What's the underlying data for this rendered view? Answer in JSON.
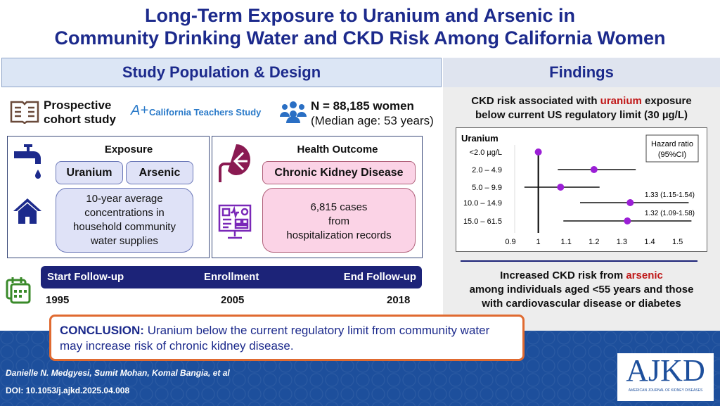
{
  "title": {
    "line1": "Long-Term Exposure to Uranium and Arsenic in",
    "line2": "Community Drinking Water and CKD Risk Among California Women"
  },
  "left": {
    "header": "Study Population & Design",
    "design": {
      "line1": "Prospective",
      "line2": "cohort study"
    },
    "study_name": "California Teachers Study",
    "population": {
      "n": "N = 88,185 women",
      "age": "(Median age: 53 years)"
    },
    "exposure": {
      "title": "Exposure",
      "chips": [
        "Uranium",
        "Arsenic"
      ],
      "description": [
        "10-year average",
        "concentrations in",
        "household community",
        "water supplies"
      ]
    },
    "outcome": {
      "title": "Health Outcome",
      "chip": "Chronic Kidney Disease",
      "description": [
        "6,815 cases",
        "from",
        "hospitalization records"
      ]
    },
    "timeline": {
      "labels": [
        "Start Follow-up",
        "Enrollment",
        "End Follow-up"
      ],
      "years": [
        "1995",
        "2005",
        "2018"
      ]
    }
  },
  "right": {
    "header": "Findings",
    "uranium_finding": {
      "pre": "CKD risk associated with ",
      "highlight": "uranium",
      "post": " exposure",
      "line2": "below current US regulatory limit (30 µg/L)"
    },
    "arsenic_finding": {
      "pre": "Increased CKD risk from ",
      "highlight": "arsenic",
      "line2": "among individuals aged <55 years and those",
      "line3": "with cardiovascular disease or diabetes"
    }
  },
  "chart_data": {
    "type": "forest",
    "row_title": "Uranium",
    "legend": {
      "line1": "Hazard ratio",
      "line2": "(95%CI)"
    },
    "categories": [
      "<2.0 µg/L",
      "2.0 – 4.9",
      "5.0 – 9.9",
      "10.0 – 14.9",
      "15.0 – 61.5"
    ],
    "hr": [
      1.0,
      1.2,
      1.08,
      1.33,
      1.32
    ],
    "lower": [
      null,
      1.07,
      0.95,
      1.15,
      1.09
    ],
    "upper": [
      null,
      1.35,
      1.22,
      1.54,
      1.58
    ],
    "labels": [
      "",
      "",
      "",
      "1.33 (1.15-1.54)",
      "1.32 (1.09-1.58)"
    ],
    "xticks": [
      "0.9",
      "1",
      "1.1",
      "1.2",
      "1.3",
      "1.4",
      "1.5"
    ],
    "xlim": [
      0.9,
      1.55
    ],
    "reference_line": 1,
    "point_color": "#9b1fd6"
  },
  "conclusion": {
    "label": "CONCLUSION:",
    "text": "Uranium below the current regulatory limit from community water may increase risk of chronic kidney disease."
  },
  "footer": {
    "authors": "Danielle N. Medgyesi, Sumit Mohan, Komal Bangia, et al",
    "doi": "DOI: 10.1053/j.ajkd.2025.04.008",
    "journal_logo": "AJKD",
    "journal_name": "AMERICAN JOURNAL OF KIDNEY DISEASES"
  }
}
